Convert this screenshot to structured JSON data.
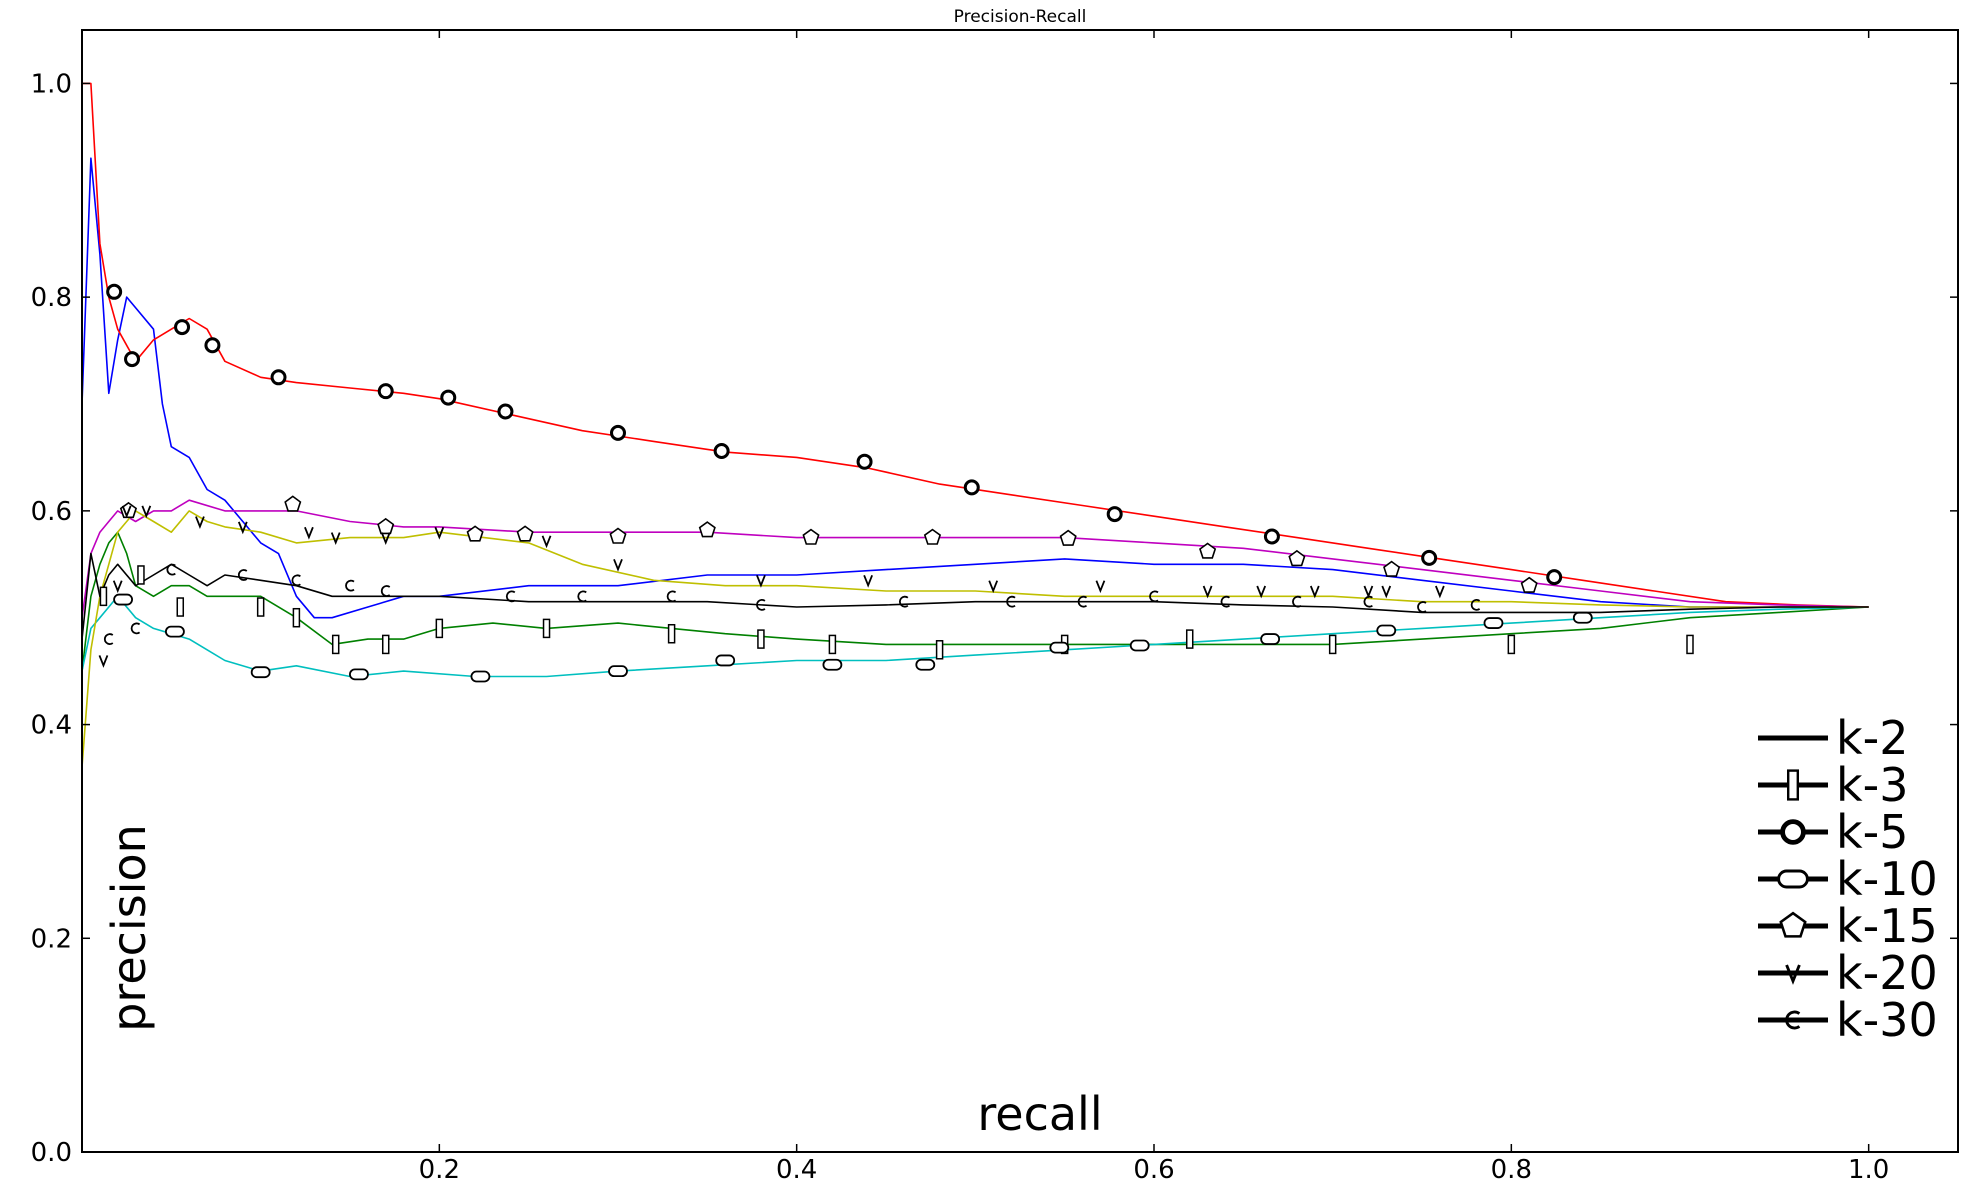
{
  "chart_data": {
    "type": "line",
    "title": "Precision-Recall",
    "xlabel": "recall",
    "ylabel": "precision",
    "xlim": [
      0.0,
      1.05
    ],
    "ylim": [
      0.0,
      1.05
    ],
    "xticks": [
      0.2,
      0.4,
      0.6,
      0.8,
      1.0
    ],
    "xtick_labels": [
      "0.2",
      "0.4",
      "0.6",
      "0.8",
      "1.0"
    ],
    "yticks": [
      0.0,
      0.2,
      0.4,
      0.6,
      0.8,
      1.0
    ],
    "ytick_labels": [
      "0.0",
      "0.2",
      "0.4",
      "0.6",
      "0.8",
      "1.0"
    ],
    "grid": false,
    "legend_position": "lower-right",
    "series": [
      {
        "name": "k-2",
        "color": "#0000ff",
        "marker": "none",
        "x": [
          0.0,
          0.005,
          0.01,
          0.015,
          0.02,
          0.025,
          0.03,
          0.04,
          0.045,
          0.05,
          0.06,
          0.07,
          0.08,
          0.09,
          0.1,
          0.11,
          0.12,
          0.13,
          0.14,
          0.16,
          0.18,
          0.2,
          0.25,
          0.3,
          0.35,
          0.4,
          0.45,
          0.5,
          0.55,
          0.6,
          0.65,
          0.7,
          0.75,
          0.8,
          0.85,
          0.9,
          0.95,
          1.0
        ],
        "y": [
          0.7,
          0.93,
          0.84,
          0.71,
          0.76,
          0.8,
          0.79,
          0.77,
          0.7,
          0.66,
          0.65,
          0.62,
          0.61,
          0.59,
          0.57,
          0.56,
          0.52,
          0.5,
          0.5,
          0.51,
          0.52,
          0.52,
          0.53,
          0.53,
          0.54,
          0.54,
          0.545,
          0.55,
          0.555,
          0.55,
          0.55,
          0.545,
          0.535,
          0.525,
          0.515,
          0.51,
          0.51,
          0.51
        ]
      },
      {
        "name": "k-3",
        "color": "#008000",
        "marker": "bar",
        "x": [
          0.0,
          0.005,
          0.01,
          0.015,
          0.02,
          0.025,
          0.03,
          0.04,
          0.05,
          0.06,
          0.07,
          0.08,
          0.09,
          0.1,
          0.12,
          0.14,
          0.16,
          0.18,
          0.2,
          0.23,
          0.26,
          0.3,
          0.33,
          0.36,
          0.4,
          0.45,
          0.5,
          0.55,
          0.6,
          0.65,
          0.7,
          0.75,
          0.8,
          0.85,
          0.9,
          0.95,
          1.0
        ],
        "y": [
          0.45,
          0.52,
          0.55,
          0.57,
          0.58,
          0.56,
          0.53,
          0.52,
          0.53,
          0.53,
          0.52,
          0.52,
          0.52,
          0.52,
          0.5,
          0.475,
          0.48,
          0.48,
          0.49,
          0.495,
          0.49,
          0.495,
          0.49,
          0.485,
          0.48,
          0.475,
          0.475,
          0.475,
          0.475,
          0.475,
          0.475,
          0.48,
          0.485,
          0.49,
          0.5,
          0.505,
          0.51
        ]
      },
      {
        "name": "k-5",
        "color": "#ff0000",
        "marker": "circle",
        "x": [
          0.0,
          0.005,
          0.01,
          0.015,
          0.02,
          0.03,
          0.04,
          0.05,
          0.06,
          0.07,
          0.08,
          0.1,
          0.12,
          0.15,
          0.18,
          0.2,
          0.24,
          0.28,
          0.32,
          0.36,
          0.4,
          0.44,
          0.48,
          0.52,
          0.56,
          0.6,
          0.64,
          0.68,
          0.72,
          0.76,
          0.8,
          0.84,
          0.88,
          0.92,
          0.96,
          1.0
        ],
        "y": [
          1.0,
          1.0,
          0.85,
          0.8,
          0.77,
          0.74,
          0.76,
          0.77,
          0.78,
          0.77,
          0.74,
          0.725,
          0.72,
          0.715,
          0.71,
          0.705,
          0.69,
          0.675,
          0.665,
          0.655,
          0.65,
          0.64,
          0.625,
          0.615,
          0.605,
          0.595,
          0.585,
          0.575,
          0.565,
          0.555,
          0.545,
          0.535,
          0.525,
          0.515,
          0.512,
          0.51
        ]
      },
      {
        "name": "k-10",
        "color": "#00bfbf",
        "marker": "oval",
        "x": [
          0.0,
          0.005,
          0.01,
          0.015,
          0.02,
          0.03,
          0.04,
          0.05,
          0.06,
          0.07,
          0.08,
          0.1,
          0.12,
          0.15,
          0.18,
          0.22,
          0.26,
          0.3,
          0.35,
          0.4,
          0.45,
          0.5,
          0.55,
          0.6,
          0.65,
          0.7,
          0.75,
          0.8,
          0.85,
          0.9,
          0.95,
          1.0
        ],
        "y": [
          0.45,
          0.49,
          0.5,
          0.51,
          0.52,
          0.5,
          0.49,
          0.485,
          0.48,
          0.47,
          0.46,
          0.45,
          0.455,
          0.445,
          0.45,
          0.445,
          0.445,
          0.45,
          0.455,
          0.46,
          0.46,
          0.465,
          0.47,
          0.475,
          0.48,
          0.485,
          0.49,
          0.495,
          0.5,
          0.505,
          0.508,
          0.51
        ]
      },
      {
        "name": "k-15",
        "color": "#bf00bf",
        "marker": "pentagon",
        "x": [
          0.0,
          0.005,
          0.01,
          0.015,
          0.02,
          0.03,
          0.04,
          0.05,
          0.06,
          0.08,
          0.1,
          0.12,
          0.15,
          0.18,
          0.2,
          0.25,
          0.3,
          0.35,
          0.4,
          0.45,
          0.5,
          0.55,
          0.6,
          0.65,
          0.7,
          0.75,
          0.8,
          0.85,
          0.9,
          0.95,
          1.0
        ],
        "y": [
          0.5,
          0.56,
          0.58,
          0.59,
          0.6,
          0.59,
          0.6,
          0.6,
          0.61,
          0.6,
          0.6,
          0.6,
          0.59,
          0.585,
          0.585,
          0.58,
          0.58,
          0.58,
          0.575,
          0.575,
          0.575,
          0.575,
          0.57,
          0.565,
          0.555,
          0.545,
          0.535,
          0.525,
          0.515,
          0.512,
          0.51
        ]
      },
      {
        "name": "k-20",
        "color": "#bfbf00",
        "marker": "v",
        "x": [
          0.0,
          0.005,
          0.01,
          0.015,
          0.02,
          0.03,
          0.04,
          0.05,
          0.06,
          0.07,
          0.08,
          0.1,
          0.12,
          0.15,
          0.18,
          0.2,
          0.25,
          0.28,
          0.32,
          0.36,
          0.4,
          0.45,
          0.5,
          0.55,
          0.6,
          0.65,
          0.7,
          0.75,
          0.8,
          0.85,
          0.9,
          0.95,
          1.0
        ],
        "y": [
          0.36,
          0.47,
          0.52,
          0.55,
          0.58,
          0.6,
          0.59,
          0.58,
          0.6,
          0.59,
          0.585,
          0.58,
          0.57,
          0.575,
          0.575,
          0.58,
          0.57,
          0.55,
          0.535,
          0.53,
          0.53,
          0.525,
          0.525,
          0.52,
          0.52,
          0.52,
          0.52,
          0.515,
          0.515,
          0.512,
          0.51,
          0.51,
          0.51
        ]
      },
      {
        "name": "k-30",
        "color": "#000000",
        "marker": "c",
        "x": [
          0.0,
          0.005,
          0.01,
          0.015,
          0.02,
          0.03,
          0.04,
          0.05,
          0.06,
          0.07,
          0.08,
          0.1,
          0.12,
          0.14,
          0.16,
          0.2,
          0.25,
          0.3,
          0.35,
          0.4,
          0.45,
          0.5,
          0.55,
          0.6,
          0.65,
          0.7,
          0.75,
          0.8,
          0.85,
          0.9,
          0.95,
          1.0
        ],
        "y": [
          0.48,
          0.56,
          0.52,
          0.54,
          0.55,
          0.53,
          0.54,
          0.55,
          0.54,
          0.53,
          0.54,
          0.535,
          0.53,
          0.52,
          0.52,
          0.52,
          0.515,
          0.515,
          0.515,
          0.51,
          0.512,
          0.515,
          0.515,
          0.515,
          0.512,
          0.51,
          0.505,
          0.505,
          0.505,
          0.508,
          0.51,
          0.51
        ]
      }
    ],
    "markers": [
      {
        "series": "k-3",
        "shape": "bar",
        "points": [
          [
            0.012,
            0.52
          ],
          [
            0.033,
            0.54
          ],
          [
            0.055,
            0.51
          ],
          [
            0.1,
            0.51
          ],
          [
            0.12,
            0.5
          ],
          [
            0.142,
            0.475
          ],
          [
            0.17,
            0.475
          ],
          [
            0.2,
            0.49
          ],
          [
            0.26,
            0.49
          ],
          [
            0.33,
            0.485
          ],
          [
            0.38,
            0.48
          ],
          [
            0.42,
            0.475
          ],
          [
            0.48,
            0.47
          ],
          [
            0.55,
            0.475
          ],
          [
            0.62,
            0.48
          ],
          [
            0.7,
            0.475
          ],
          [
            0.8,
            0.475
          ],
          [
            0.9,
            0.475
          ]
        ]
      },
      {
        "series": "k-5",
        "shape": "circle",
        "points": [
          [
            0.018,
            0.805
          ],
          [
            0.028,
            0.742
          ],
          [
            0.056,
            0.772
          ],
          [
            0.073,
            0.755
          ],
          [
            0.11,
            0.725
          ],
          [
            0.17,
            0.712
          ],
          [
            0.205,
            0.706
          ],
          [
            0.237,
            0.693
          ],
          [
            0.3,
            0.673
          ],
          [
            0.358,
            0.656
          ],
          [
            0.438,
            0.646
          ],
          [
            0.498,
            0.622
          ],
          [
            0.578,
            0.597
          ],
          [
            0.666,
            0.576
          ],
          [
            0.754,
            0.556
          ],
          [
            0.824,
            0.538
          ]
        ]
      },
      {
        "series": "k-10",
        "shape": "oval",
        "points": [
          [
            0.023,
            0.517
          ],
          [
            0.052,
            0.487
          ],
          [
            0.1,
            0.449
          ],
          [
            0.155,
            0.447
          ],
          [
            0.223,
            0.445
          ],
          [
            0.3,
            0.45
          ],
          [
            0.36,
            0.46
          ],
          [
            0.42,
            0.456
          ],
          [
            0.472,
            0.456
          ],
          [
            0.547,
            0.472
          ],
          [
            0.592,
            0.474
          ],
          [
            0.665,
            0.48
          ],
          [
            0.73,
            0.488
          ],
          [
            0.79,
            0.495
          ],
          [
            0.84,
            0.5
          ]
        ]
      },
      {
        "series": "k-15",
        "shape": "pentagon",
        "points": [
          [
            0.026,
            0.6
          ],
          [
            0.118,
            0.606
          ],
          [
            0.17,
            0.585
          ],
          [
            0.22,
            0.578
          ],
          [
            0.248,
            0.578
          ],
          [
            0.3,
            0.576
          ],
          [
            0.35,
            0.582
          ],
          [
            0.408,
            0.575
          ],
          [
            0.476,
            0.575
          ],
          [
            0.552,
            0.574
          ],
          [
            0.63,
            0.562
          ],
          [
            0.68,
            0.555
          ],
          [
            0.733,
            0.545
          ],
          [
            0.81,
            0.53
          ]
        ]
      },
      {
        "series": "k-20",
        "shape": "v",
        "points": [
          [
            0.012,
            0.46
          ],
          [
            0.02,
            0.53
          ],
          [
            0.025,
            0.6
          ],
          [
            0.036,
            0.6
          ],
          [
            0.066,
            0.59
          ],
          [
            0.09,
            0.585
          ],
          [
            0.127,
            0.58
          ],
          [
            0.142,
            0.575
          ],
          [
            0.17,
            0.575
          ],
          [
            0.2,
            0.58
          ],
          [
            0.26,
            0.572
          ],
          [
            0.3,
            0.55
          ],
          [
            0.38,
            0.535
          ],
          [
            0.44,
            0.535
          ],
          [
            0.51,
            0.53
          ],
          [
            0.57,
            0.53
          ],
          [
            0.63,
            0.525
          ],
          [
            0.66,
            0.525
          ],
          [
            0.69,
            0.525
          ],
          [
            0.72,
            0.525
          ],
          [
            0.73,
            0.525
          ],
          [
            0.76,
            0.525
          ]
        ]
      },
      {
        "series": "k-30",
        "shape": "c",
        "points": [
          [
            0.015,
            0.48
          ],
          [
            0.03,
            0.49
          ],
          [
            0.05,
            0.545
          ],
          [
            0.09,
            0.54
          ],
          [
            0.12,
            0.535
          ],
          [
            0.15,
            0.53
          ],
          [
            0.17,
            0.525
          ],
          [
            0.24,
            0.52
          ],
          [
            0.28,
            0.52
          ],
          [
            0.33,
            0.52
          ],
          [
            0.38,
            0.512
          ],
          [
            0.46,
            0.515
          ],
          [
            0.52,
            0.515
          ],
          [
            0.56,
            0.515
          ],
          [
            0.6,
            0.52
          ],
          [
            0.64,
            0.515
          ],
          [
            0.68,
            0.515
          ],
          [
            0.72,
            0.515
          ],
          [
            0.75,
            0.51
          ],
          [
            0.78,
            0.512
          ]
        ]
      }
    ],
    "legend": [
      {
        "label": "k-2",
        "marker": "none"
      },
      {
        "label": "k-3",
        "marker": "bar"
      },
      {
        "label": "k-5",
        "marker": "circle"
      },
      {
        "label": "k-10",
        "marker": "oval"
      },
      {
        "label": "k-15",
        "marker": "pentagon"
      },
      {
        "label": "k-20",
        "marker": "v"
      },
      {
        "label": "k-30",
        "marker": "c"
      }
    ]
  }
}
